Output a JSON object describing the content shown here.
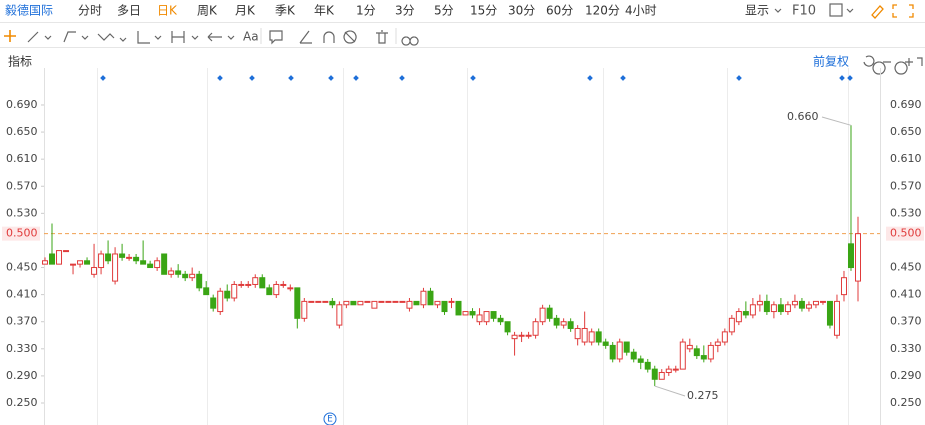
{
  "toolbar": {
    "stock_name": "毅德国际",
    "periods": [
      "分时",
      "多日",
      "日K",
      "周K",
      "月K",
      "季K",
      "年K",
      "1分",
      "3分",
      "5分",
      "15分",
      "30分",
      "60分",
      "120分",
      "4小时"
    ],
    "active_period": 2,
    "display": "显示",
    "f10": "F10",
    "text_tool": "Aa",
    "indicator": "指标",
    "adjust": "前复权"
  },
  "chart_data": {
    "type": "candlestick",
    "up_color": "#e03b3b",
    "down_color": "#3aa515",
    "ylim": [
      0.2175,
      0.7446
    ],
    "yticks": [
      {
        "value": 0.25,
        "label": "0.250"
      },
      {
        "value": 0.29,
        "label": "0.290"
      },
      {
        "value": 0.33,
        "label": "0.330"
      },
      {
        "value": 0.37,
        "label": "0.370"
      },
      {
        "value": 0.41,
        "label": "0.410"
      },
      {
        "value": 0.45,
        "label": "0.450"
      },
      {
        "value": 0.53,
        "label": "0.530"
      },
      {
        "value": 0.57,
        "label": "0.570"
      },
      {
        "value": 0.61,
        "label": "0.610"
      },
      {
        "value": 0.65,
        "label": "0.650"
      },
      {
        "value": 0.69,
        "label": "0.690"
      }
    ],
    "last_price": {
      "value": 0.5,
      "label": "0.500"
    },
    "high_annotation": {
      "value": 0.66,
      "label": "0.660"
    },
    "low_annotation": {
      "value": 0.275,
      "label": "0.275"
    },
    "event_marker_label": "E",
    "ohlc": [
      [
        0.455,
        0.465,
        0.455,
        0.46
      ],
      [
        0.47,
        0.515,
        0.455,
        0.455
      ],
      [
        0.455,
        0.475,
        0.455,
        0.475
      ],
      [
        0.475,
        0.475,
        0.475,
        0.475
      ],
      [
        0.455,
        0.455,
        0.44,
        0.455
      ],
      [
        0.455,
        0.46,
        0.45,
        0.46
      ],
      [
        0.46,
        0.465,
        0.455,
        0.455
      ],
      [
        0.44,
        0.485,
        0.435,
        0.45
      ],
      [
        0.45,
        0.475,
        0.44,
        0.47
      ],
      [
        0.47,
        0.49,
        0.455,
        0.46
      ],
      [
        0.43,
        0.48,
        0.425,
        0.47
      ],
      [
        0.47,
        0.485,
        0.46,
        0.465
      ],
      [
        0.465,
        0.47,
        0.46,
        0.465
      ],
      [
        0.465,
        0.47,
        0.455,
        0.46
      ],
      [
        0.46,
        0.49,
        0.455,
        0.455
      ],
      [
        0.455,
        0.46,
        0.45,
        0.45
      ],
      [
        0.45,
        0.465,
        0.445,
        0.46
      ],
      [
        0.47,
        0.47,
        0.44,
        0.44
      ],
      [
        0.44,
        0.45,
        0.435,
        0.445
      ],
      [
        0.445,
        0.455,
        0.435,
        0.44
      ],
      [
        0.44,
        0.445,
        0.43,
        0.435
      ],
      [
        0.435,
        0.45,
        0.43,
        0.44
      ],
      [
        0.44,
        0.445,
        0.415,
        0.42
      ],
      [
        0.42,
        0.43,
        0.41,
        0.41
      ],
      [
        0.405,
        0.41,
        0.385,
        0.39
      ],
      [
        0.385,
        0.42,
        0.38,
        0.415
      ],
      [
        0.415,
        0.425,
        0.4,
        0.405
      ],
      [
        0.405,
        0.43,
        0.4,
        0.425
      ],
      [
        0.425,
        0.43,
        0.42,
        0.425
      ],
      [
        0.425,
        0.43,
        0.42,
        0.425
      ],
      [
        0.425,
        0.44,
        0.42,
        0.435
      ],
      [
        0.435,
        0.44,
        0.42,
        0.42
      ],
      [
        0.42,
        0.425,
        0.41,
        0.41
      ],
      [
        0.41,
        0.43,
        0.405,
        0.425
      ],
      [
        0.425,
        0.43,
        0.42,
        0.425
      ],
      [
        0.42,
        0.425,
        0.415,
        0.42
      ],
      [
        0.42,
        0.42,
        0.36,
        0.375
      ],
      [
        0.375,
        0.405,
        0.37,
        0.4
      ],
      [
        0.4,
        0.4,
        0.4,
        0.4
      ],
      [
        0.4,
        0.4,
        0.4,
        0.4
      ],
      [
        0.4,
        0.4,
        0.4,
        0.4
      ],
      [
        0.4,
        0.405,
        0.39,
        0.395
      ],
      [
        0.365,
        0.4,
        0.36,
        0.395
      ],
      [
        0.395,
        0.4,
        0.39,
        0.4
      ],
      [
        0.4,
        0.4,
        0.395,
        0.395
      ],
      [
        0.395,
        0.4,
        0.395,
        0.4
      ],
      [
        0.4,
        0.4,
        0.4,
        0.4
      ],
      [
        0.39,
        0.4,
        0.39,
        0.4
      ],
      [
        0.4,
        0.4,
        0.4,
        0.4
      ],
      [
        0.4,
        0.4,
        0.4,
        0.4
      ],
      [
        0.4,
        0.4,
        0.4,
        0.4
      ],
      [
        0.4,
        0.4,
        0.4,
        0.4
      ],
      [
        0.39,
        0.405,
        0.385,
        0.4
      ],
      [
        0.4,
        0.4,
        0.395,
        0.395
      ],
      [
        0.395,
        0.42,
        0.39,
        0.415
      ],
      [
        0.415,
        0.42,
        0.395,
        0.395
      ],
      [
        0.395,
        0.4,
        0.39,
        0.4
      ],
      [
        0.4,
        0.4,
        0.38,
        0.385
      ],
      [
        0.4,
        0.405,
        0.39,
        0.4
      ],
      [
        0.4,
        0.4,
        0.38,
        0.38
      ],
      [
        0.38,
        0.385,
        0.38,
        0.385
      ],
      [
        0.385,
        0.39,
        0.375,
        0.38
      ],
      [
        0.37,
        0.39,
        0.365,
        0.38
      ],
      [
        0.37,
        0.385,
        0.365,
        0.385
      ],
      [
        0.385,
        0.385,
        0.37,
        0.375
      ],
      [
        0.375,
        0.38,
        0.365,
        0.37
      ],
      [
        0.37,
        0.37,
        0.35,
        0.355
      ],
      [
        0.345,
        0.355,
        0.32,
        0.35
      ],
      [
        0.35,
        0.355,
        0.34,
        0.35
      ],
      [
        0.35,
        0.355,
        0.345,
        0.35
      ],
      [
        0.35,
        0.375,
        0.345,
        0.37
      ],
      [
        0.37,
        0.395,
        0.365,
        0.39
      ],
      [
        0.39,
        0.395,
        0.37,
        0.375
      ],
      [
        0.375,
        0.38,
        0.36,
        0.365
      ],
      [
        0.365,
        0.375,
        0.36,
        0.37
      ],
      [
        0.37,
        0.375,
        0.355,
        0.36
      ],
      [
        0.345,
        0.365,
        0.335,
        0.36
      ],
      [
        0.34,
        0.385,
        0.335,
        0.36
      ],
      [
        0.34,
        0.36,
        0.335,
        0.355
      ],
      [
        0.355,
        0.36,
        0.335,
        0.34
      ],
      [
        0.34,
        0.345,
        0.33,
        0.335
      ],
      [
        0.335,
        0.34,
        0.31,
        0.315
      ],
      [
        0.315,
        0.345,
        0.31,
        0.34
      ],
      [
        0.34,
        0.34,
        0.32,
        0.325
      ],
      [
        0.325,
        0.33,
        0.31,
        0.315
      ],
      [
        0.315,
        0.32,
        0.3,
        0.31
      ],
      [
        0.31,
        0.315,
        0.295,
        0.3
      ],
      [
        0.3,
        0.305,
        0.275,
        0.285
      ],
      [
        0.285,
        0.3,
        0.285,
        0.295
      ],
      [
        0.295,
        0.305,
        0.29,
        0.3
      ],
      [
        0.3,
        0.305,
        0.295,
        0.3
      ],
      [
        0.3,
        0.345,
        0.3,
        0.34
      ],
      [
        0.33,
        0.345,
        0.325,
        0.335
      ],
      [
        0.33,
        0.335,
        0.315,
        0.32
      ],
      [
        0.32,
        0.335,
        0.31,
        0.315
      ],
      [
        0.315,
        0.34,
        0.31,
        0.335
      ],
      [
        0.335,
        0.345,
        0.325,
        0.34
      ],
      [
        0.34,
        0.36,
        0.335,
        0.355
      ],
      [
        0.355,
        0.38,
        0.35,
        0.375
      ],
      [
        0.37,
        0.39,
        0.365,
        0.385
      ],
      [
        0.385,
        0.4,
        0.375,
        0.38
      ],
      [
        0.38,
        0.405,
        0.375,
        0.395
      ],
      [
        0.395,
        0.41,
        0.385,
        0.4
      ],
      [
        0.4,
        0.41,
        0.38,
        0.385
      ],
      [
        0.385,
        0.4,
        0.375,
        0.395
      ],
      [
        0.395,
        0.405,
        0.38,
        0.385
      ],
      [
        0.385,
        0.4,
        0.38,
        0.395
      ],
      [
        0.395,
        0.41,
        0.39,
        0.4
      ],
      [
        0.4,
        0.405,
        0.385,
        0.39
      ],
      [
        0.39,
        0.4,
        0.385,
        0.395
      ],
      [
        0.395,
        0.4,
        0.39,
        0.4
      ],
      [
        0.4,
        0.4,
        0.395,
        0.4
      ],
      [
        0.4,
        0.4,
        0.36,
        0.365
      ],
      [
        0.35,
        0.41,
        0.345,
        0.4
      ],
      [
        0.41,
        0.445,
        0.4,
        0.435
      ],
      [
        0.485,
        0.66,
        0.445,
        0.45
      ],
      [
        0.43,
        0.525,
        0.4,
        0.5
      ]
    ]
  }
}
